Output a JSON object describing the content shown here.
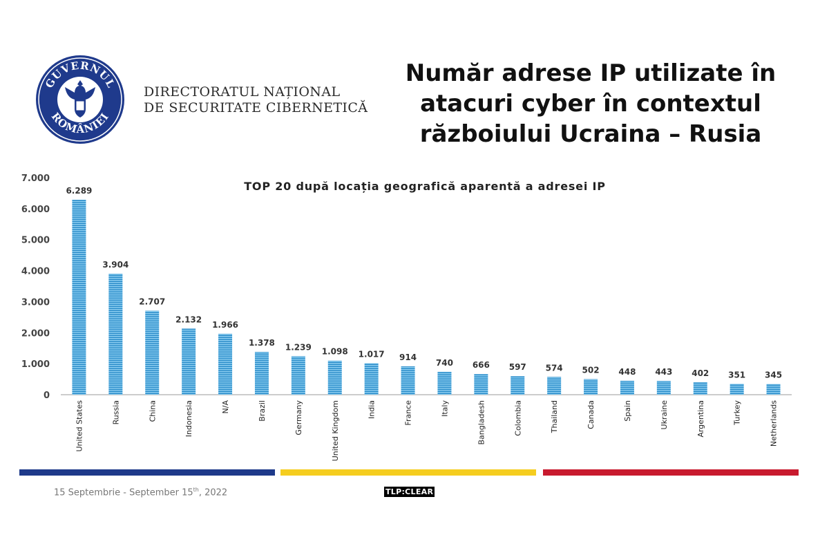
{
  "header": {
    "seal_text_top": "GUVERNUL",
    "seal_text_bottom": "ROMÂNIEI",
    "org_line1": "DIRECTORATUL NAȚIONAL",
    "org_line2": "DE SECURITATE CIBERNETICĂ",
    "title_line1": "Număr adrese IP utilizate în",
    "title_line2": "atacuri cyber în contextul",
    "title_line3": "războiului Ucraina – Rusia"
  },
  "footer": {
    "date_prefix": "15 Septembrie - September 15",
    "date_sup": "th",
    "date_suffix": ", 2022",
    "tlp": "TLP:CLEAR"
  },
  "colors": {
    "bar": "#3a9dd6",
    "blue": "#1e3a8a",
    "yellow": "#f5cd1f",
    "red": "#c81a2e"
  },
  "chart_data": {
    "type": "bar",
    "title": "TOP 20 după locația geografică aparentă a adresei IP",
    "xlabel": "",
    "ylabel": "",
    "ylim": [
      0,
      7000
    ],
    "yticks": [
      0,
      1000,
      2000,
      3000,
      4000,
      5000,
      6000,
      7000
    ],
    "ytick_labels": [
      "0",
      "1.000",
      "2.000",
      "3.000",
      "4.000",
      "5.000",
      "6.000",
      "7.000"
    ],
    "grid": false,
    "categories": [
      "United States",
      "Russia",
      "China",
      "Indonesia",
      "N/A",
      "Brazil",
      "Germany",
      "United Kingdom",
      "India",
      "France",
      "Italy",
      "Bangladesh",
      "Colombia",
      "Thailand",
      "Canada",
      "Spain",
      "Ukraine",
      "Argentina",
      "Turkey",
      "Netherlands"
    ],
    "values": [
      6289,
      3904,
      2707,
      2132,
      1966,
      1378,
      1239,
      1098,
      1017,
      914,
      740,
      666,
      597,
      574,
      502,
      448,
      443,
      402,
      351,
      345
    ],
    "value_labels": [
      "6.289",
      "3.904",
      "2.707",
      "2.132",
      "1.966",
      "1.378",
      "1.239",
      "1.098",
      "1.017",
      "914",
      "740",
      "666",
      "597",
      "574",
      "502",
      "448",
      "443",
      "402",
      "351",
      "345"
    ]
  }
}
